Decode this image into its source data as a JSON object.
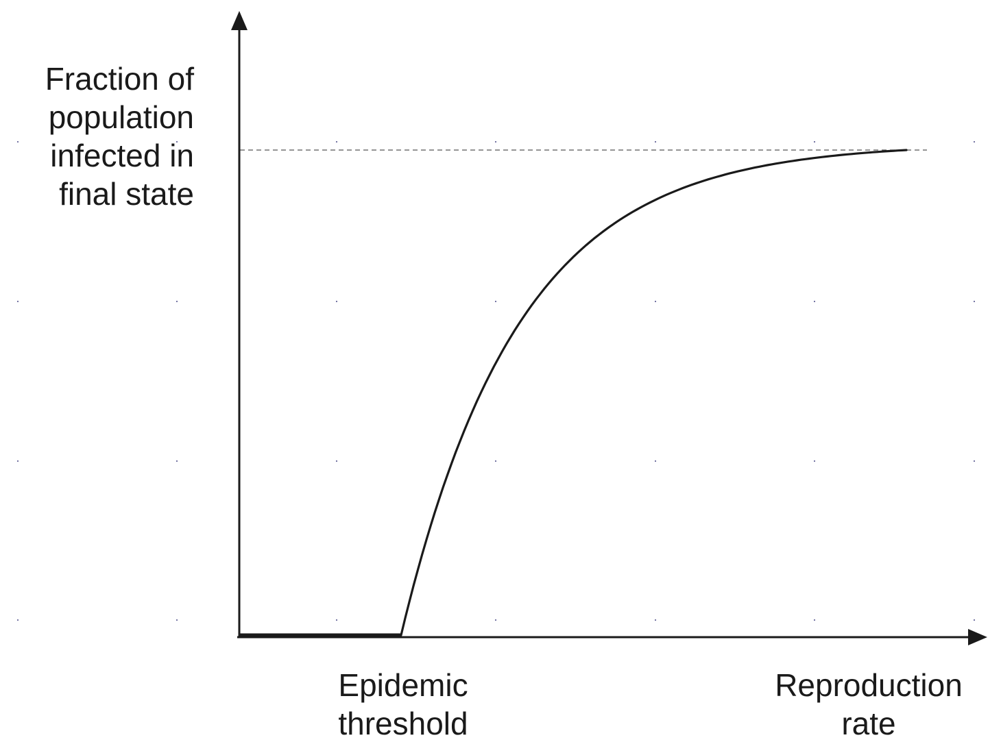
{
  "y_axis_label": {
    "lines": [
      "Fraction of",
      "population",
      "infected in",
      "final state"
    ]
  },
  "x_labels": {
    "threshold": [
      "Epidemic",
      "threshold"
    ],
    "axis": [
      "Reproduction",
      "rate"
    ]
  },
  "colors": {
    "line": "#1a1a1a",
    "dashed": "#555555",
    "dots": "#666699"
  },
  "chart_data": {
    "type": "line",
    "description_of_curve": "zero below the epidemic threshold, then rising and saturating toward the dashed asymptote",
    "xlim": [
      0,
      1
    ],
    "ylim": [
      0,
      1
    ]
  }
}
